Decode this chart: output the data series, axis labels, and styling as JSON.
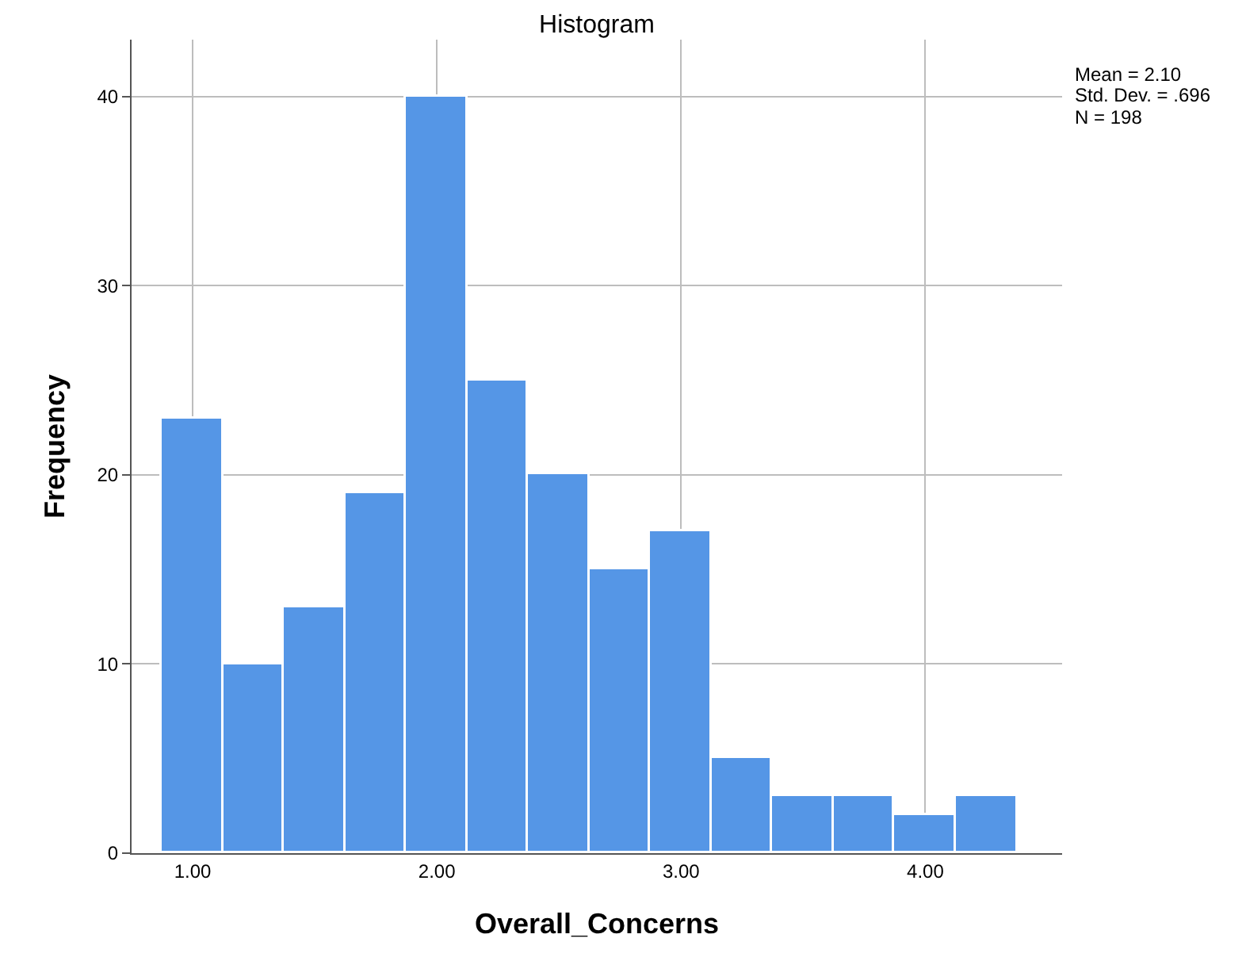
{
  "chart_data": {
    "type": "histogram",
    "title": "Histogram",
    "xlabel": "Overall_Concerns",
    "ylabel": "Frequency",
    "bins": [
      0.875,
      1.125,
      1.375,
      1.625,
      1.875,
      2.125,
      2.375,
      2.625,
      2.875,
      3.125,
      3.375,
      3.625,
      3.875,
      4.125,
      4.375
    ],
    "values": [
      23,
      10,
      13,
      19,
      40,
      25,
      20,
      15,
      17,
      5,
      3,
      3,
      2,
      3
    ],
    "color": "#5596e6",
    "xlim": [
      0.75,
      4.56
    ],
    "xticks": [
      {
        "value": 1,
        "label": "1.00"
      },
      {
        "value": 2,
        "label": "2.00"
      },
      {
        "value": 3,
        "label": "3.00"
      },
      {
        "value": 4,
        "label": "4.00"
      }
    ],
    "ylim": [
      0,
      43
    ],
    "yticks": [
      0,
      10,
      20,
      30,
      40
    ],
    "grid": true,
    "legend": false,
    "annotations": [
      "Mean = 2.10",
      "Std. Dev. = .696",
      "N = 198"
    ]
  }
}
